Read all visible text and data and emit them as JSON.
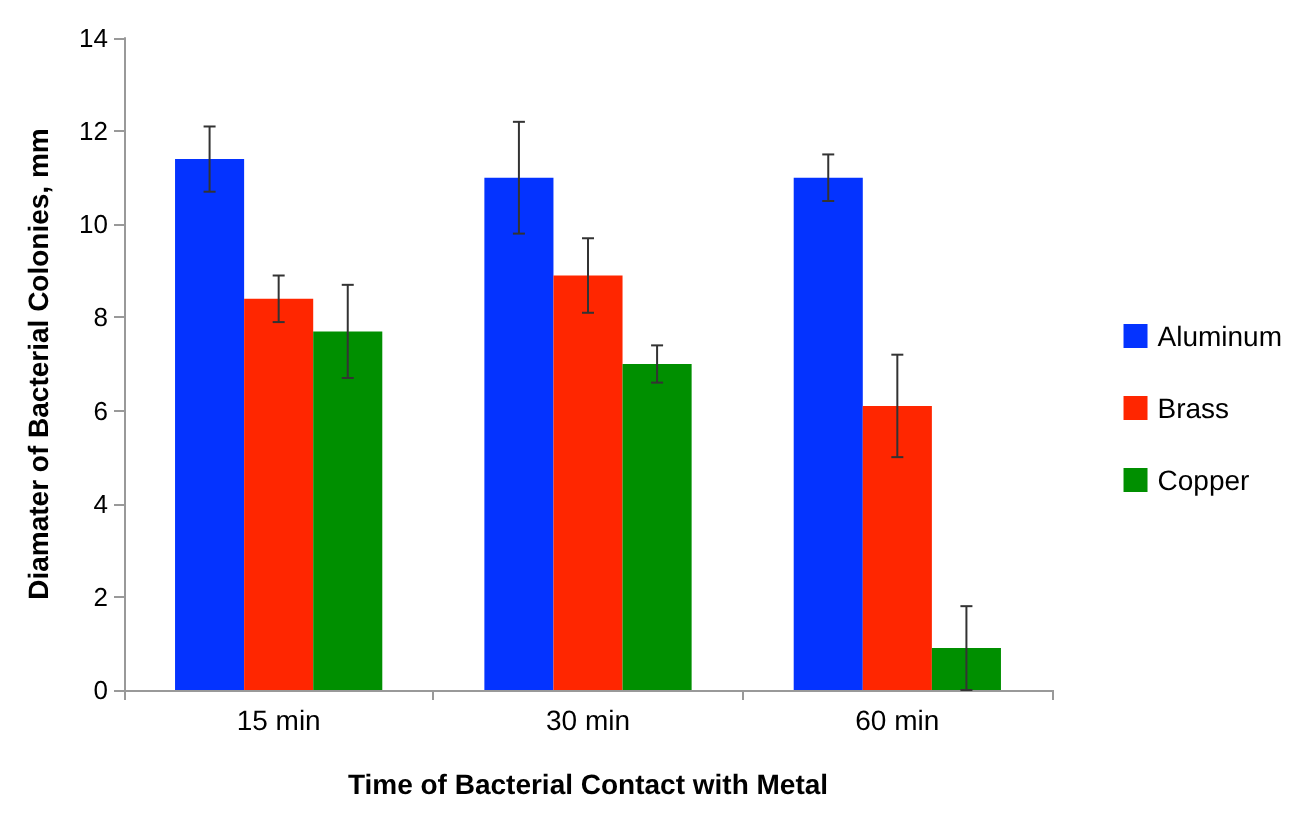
{
  "chart_data": {
    "type": "bar",
    "xlabel": "Time of Bacterial Contact with Metal",
    "ylabel": "Diamater of Bacterial Colonies, mm",
    "categories": [
      "15 min",
      "30 min",
      "60 min"
    ],
    "series": [
      {
        "name": "Aluminum",
        "color": "#0433ff",
        "values": [
          11.4,
          11.0,
          11.0
        ],
        "errors": [
          0.7,
          1.2,
          0.5
        ]
      },
      {
        "name": "Brass",
        "color": "#ff2600",
        "values": [
          8.4,
          8.9,
          6.1
        ],
        "errors": [
          0.5,
          0.8,
          1.1
        ]
      },
      {
        "name": "Copper",
        "color": "#008f00",
        "values": [
          7.7,
          7.0,
          0.9
        ],
        "errors": [
          1.0,
          0.4,
          0.9
        ]
      }
    ],
    "ylim": [
      0,
      14
    ],
    "yticks": [
      0,
      2,
      4,
      6,
      8,
      10,
      12,
      14
    ],
    "grid": false,
    "legend": "right"
  }
}
